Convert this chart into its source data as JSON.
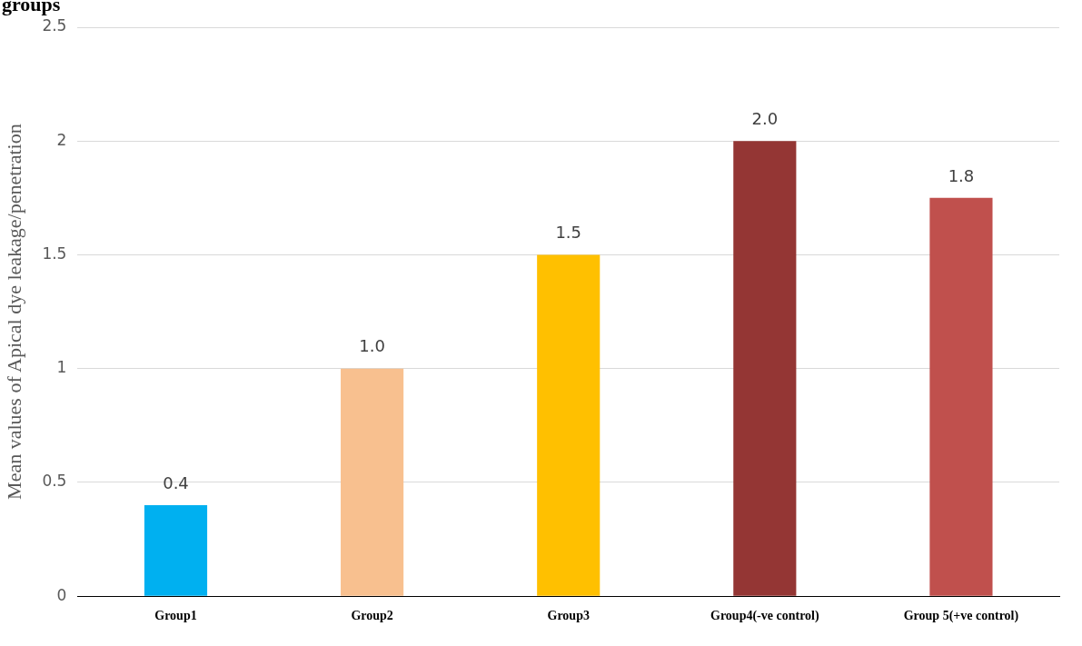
{
  "chart_data": {
    "type": "bar",
    "title": "groups",
    "ylabel": "Mean values of Apical dye leakage/penetration",
    "categories": [
      "Group1",
      "Group2",
      "Group3",
      "Group4(-ve control)",
      "Group 5(+ve control)"
    ],
    "values": [
      0.4,
      1.0,
      1.5,
      2.0,
      1.75
    ],
    "colors": [
      "#00b0f0",
      "#f8c08f",
      "#ffc000",
      "#943634",
      "#c0504d"
    ],
    "value_labels": [
      "0.4",
      "1.0",
      "1.5",
      "2.0",
      "1.8"
    ],
    "ylim": [
      0,
      2.5
    ],
    "yticks": [
      0,
      0.5,
      1,
      1.5,
      2,
      2.5
    ],
    "grid": "y",
    "legend": false
  }
}
